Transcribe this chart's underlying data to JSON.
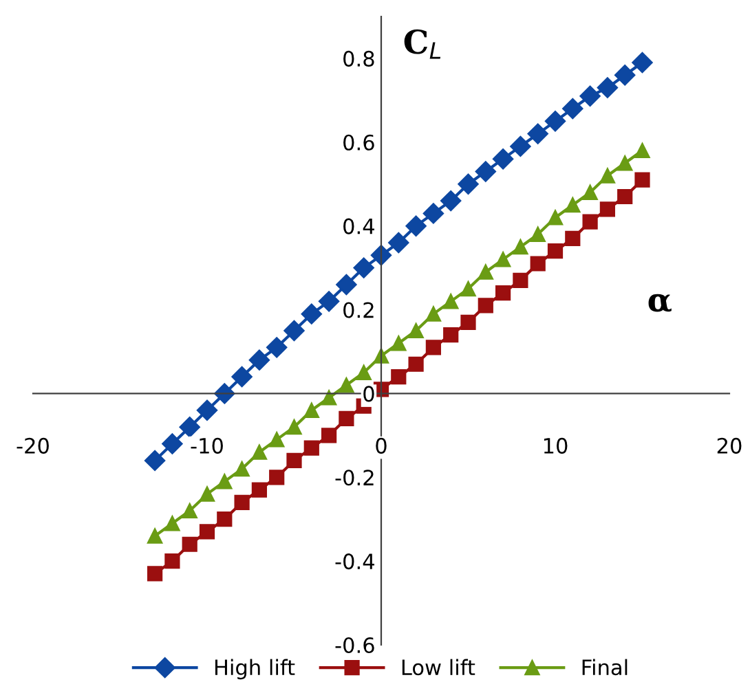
{
  "chart_data": {
    "type": "line",
    "xlabel": "α",
    "ylabel": "C$_{L}$",
    "x": [
      -13,
      -12,
      -11,
      -10,
      -9,
      -8,
      -7,
      -6,
      -5,
      -4,
      -3,
      -2,
      -1,
      0,
      1,
      2,
      3,
      4,
      5,
      6,
      7,
      8,
      9,
      10,
      11,
      12,
      13,
      14,
      15
    ],
    "series": [
      {
        "name": "High lift",
        "color": "#0d47a1",
        "marker": "diamond",
        "values": [
          -0.16,
          -0.12,
          -0.08,
          -0.04,
          0.0,
          0.04,
          0.08,
          0.11,
          0.15,
          0.19,
          0.22,
          0.26,
          0.3,
          0.33,
          0.36,
          0.4,
          0.43,
          0.46,
          0.5,
          0.53,
          0.56,
          0.59,
          0.62,
          0.65,
          0.68,
          0.71,
          0.73,
          0.76,
          0.79
        ]
      },
      {
        "name": "Low lift",
        "color": "#9b0f0f",
        "marker": "square",
        "values": [
          -0.43,
          -0.4,
          -0.36,
          -0.33,
          -0.3,
          -0.26,
          -0.23,
          -0.2,
          -0.16,
          -0.13,
          -0.1,
          -0.06,
          -0.03,
          0.01,
          0.04,
          0.07,
          0.11,
          0.14,
          0.17,
          0.21,
          0.24,
          0.27,
          0.31,
          0.34,
          0.37,
          0.41,
          0.44,
          0.47,
          0.51
        ]
      },
      {
        "name": "Final",
        "color": "#6a9c14",
        "marker": "triangle",
        "values": [
          -0.34,
          -0.31,
          -0.28,
          -0.24,
          -0.21,
          -0.18,
          -0.14,
          -0.11,
          -0.08,
          -0.04,
          -0.01,
          0.02,
          0.05,
          0.09,
          0.12,
          0.15,
          0.19,
          0.22,
          0.25,
          0.29,
          0.32,
          0.35,
          0.38,
          0.42,
          0.45,
          0.48,
          0.52,
          0.55,
          0.58
        ]
      }
    ],
    "xlim": [
      -20,
      20
    ],
    "xticks": [
      -20,
      -10,
      0,
      10,
      20
    ],
    "ylim": [
      -0.6,
      0.9
    ],
    "yticks": [
      -0.6,
      -0.4,
      -0.2,
      0,
      0.2,
      0.4,
      0.6,
      0.8
    ],
    "grid": false,
    "legend": "bottom",
    "line_style": "solid"
  }
}
